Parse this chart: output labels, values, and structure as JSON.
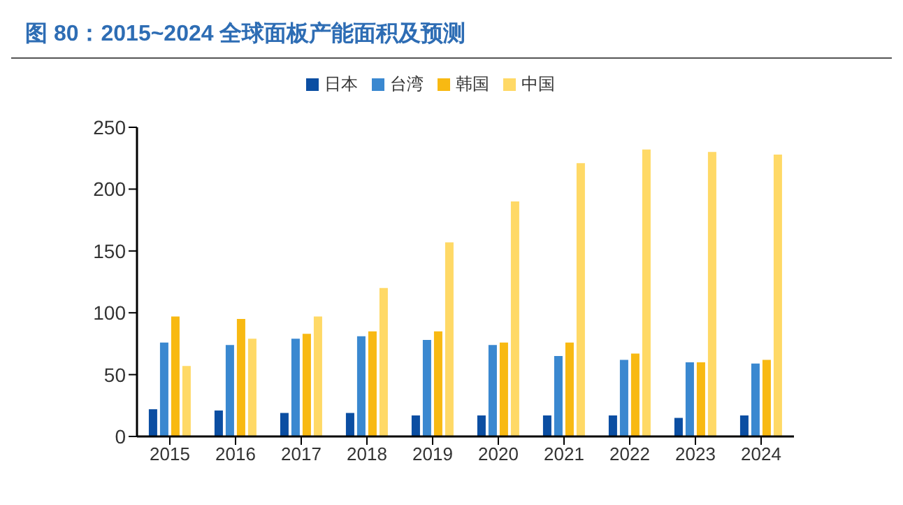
{
  "chart_data": {
    "type": "bar",
    "title": "图 80：2015~2024 全球面板产能面积及预测",
    "categories": [
      "2015",
      "2016",
      "2017",
      "2018",
      "2019",
      "2020",
      "2021",
      "2022",
      "2023",
      "2024"
    ],
    "series": [
      {
        "name": "日本",
        "color": "#0b4ea2",
        "values": [
          22,
          21,
          19,
          19,
          17,
          17,
          17,
          17,
          15,
          17
        ]
      },
      {
        "name": "台湾",
        "color": "#3a88d0",
        "values": [
          76,
          74,
          79,
          81,
          78,
          74,
          65,
          62,
          60,
          59
        ]
      },
      {
        "name": "韩国",
        "color": "#f8b912",
        "values": [
          97,
          95,
          83,
          85,
          85,
          76,
          76,
          67,
          60,
          62
        ]
      },
      {
        "name": "中国",
        "color": "#ffd966",
        "values": [
          57,
          79,
          97,
          120,
          157,
          190,
          221,
          232,
          230,
          228
        ]
      }
    ],
    "ylim": [
      0,
      250
    ],
    "yticks": [
      0,
      50,
      100,
      150,
      200,
      250
    ],
    "grid": false,
    "legend": "top"
  }
}
